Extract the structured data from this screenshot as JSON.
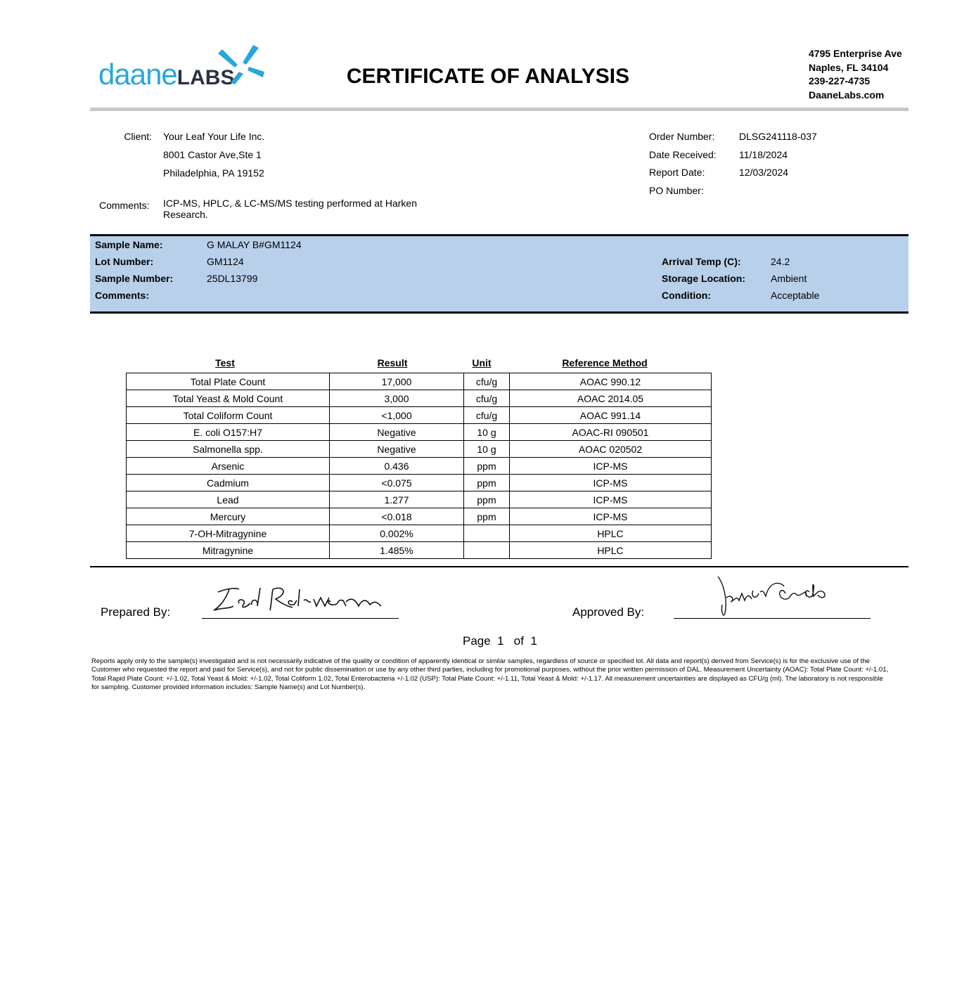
{
  "header": {
    "logo": {
      "main": "daane",
      "accent": "LABS"
    },
    "title": "CERTIFICATE OF ANALYSIS",
    "address": [
      "4795 Enterprise Ave",
      "Naples, FL 34104",
      "239-227-4735",
      "DaaneLabs.com"
    ]
  },
  "client": {
    "label": "Client:",
    "lines": [
      "Your Leaf Your Life Inc.",
      "8001 Castor Ave,Ste 1",
      "Philadelphia, PA 19152"
    ],
    "comments_label": "Comments:",
    "comments": "ICP-MS, HPLC, & LC-MS/MS testing performed at Harken Research."
  },
  "order": [
    {
      "label": "Order Number:",
      "value": "DLSG241118-037"
    },
    {
      "label": "Date Received:",
      "value": "11/18/2024"
    },
    {
      "label": "Report Date:",
      "value": "12/03/2024"
    },
    {
      "label": "PO Number:"
    }
  ],
  "sample": {
    "left": [
      {
        "label": "Sample Name:",
        "value": "G MALAY B#GM1124"
      },
      {
        "label": "Lot Number:",
        "value": "GM1124"
      },
      {
        "label": "Sample Number:",
        "value": "25DL13799"
      },
      {
        "label": "Comments:"
      }
    ],
    "right": [
      {
        "label": "Arrival Temp (C):",
        "value": "24.2"
      },
      {
        "label": "Storage Location:",
        "value": "Ambient"
      },
      {
        "label": "Condition:",
        "value": "Acceptable"
      }
    ]
  },
  "table": {
    "headers": [
      "Test",
      "Result",
      "Unit",
      "Reference Method"
    ],
    "rows": [
      [
        "Total Plate Count",
        "17,000",
        "cfu/g",
        "AOAC 990.12"
      ],
      [
        "Total Yeast & Mold Count",
        "3,000",
        "cfu/g",
        "AOAC 2014.05"
      ],
      [
        "Total Coliform Count",
        "<1,000",
        "cfu/g",
        "AOAC 991.14"
      ],
      [
        "E. coli O157:H7",
        "Negative",
        "10 g",
        "AOAC-RI 090501"
      ],
      [
        "Salmonella spp.",
        "Negative",
        "10 g",
        "AOAC 020502"
      ],
      [
        "Arsenic",
        "0.436",
        "ppm",
        "ICP-MS"
      ],
      [
        "Cadmium",
        "<0.075",
        "ppm",
        "ICP-MS"
      ],
      [
        "Lead",
        "1.277",
        "ppm",
        "ICP-MS"
      ],
      [
        "Mercury",
        "<0.018",
        "ppm",
        "ICP-MS"
      ],
      [
        "7-OH-Mitragynine",
        "0.002%",
        null,
        "HPLC"
      ],
      [
        "Mitragynine",
        "1.485%",
        null,
        "HPLC"
      ]
    ]
  },
  "signatures": {
    "prepared": "Prepared By:",
    "approved": "Approved By:"
  },
  "page": {
    "label": "Page",
    "current": "1",
    "of": "of",
    "total": "1"
  },
  "disclaimer": "Reports apply only to the sample(s) investigated and is not necessarily indicative of the quality or condition of apparently identical or similar samples, regardless of source or specified lot. All data and report(s) derived from Service(s) is for the exclusive use of the Customer who requested the report and paid for Service(s), and not for public dissemination or use by any other third parties, including for promotional purposes, without the prior written permission of DAL. Measurement Uncertainty (AOAC): Total Plate Count: +/-1.01, Total Rapid Plate Count: +/-1.02, Total Yeast & Mold: +/-1.02, Total Coliform 1.02, Total Enterobacteria +/-1.02 (USP): Total Plate Count: +/-1.11, Total Yeast & Mold: +/-1.17. All measurement uncertainties are displayed as CFU/g (ml). The laboratory is not responsible for sampling. Customer provided information includes: Sample Name(s) and Lot Number(s)."
}
